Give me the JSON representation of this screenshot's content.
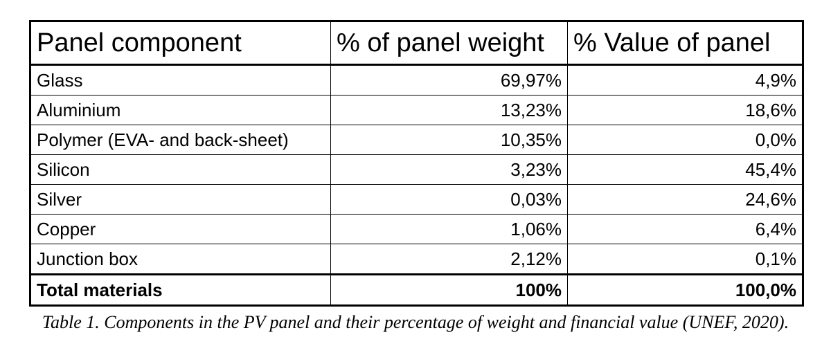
{
  "table": {
    "header": [
      "Panel component",
      "% of panel weight",
      "% Value of panel"
    ],
    "rows": [
      [
        "Glass",
        "69,97%",
        "4,9%"
      ],
      [
        "Aluminium",
        "13,23%",
        "18,6%"
      ],
      [
        "Polymer (EVA- and back-sheet)",
        "10,35%",
        "0,0%"
      ],
      [
        "Silicon",
        "3,23%",
        "45,4%"
      ],
      [
        "Silver",
        "0,03%",
        "24,6%"
      ],
      [
        "Copper",
        "1,06%",
        "6,4%"
      ],
      [
        "Junction box",
        "2,12%",
        "0,1%"
      ]
    ],
    "total": [
      "Total materials",
      "100%",
      "100,0%"
    ]
  },
  "caption": "Table 1. Components in the PV panel and their percentage of weight and financial value (UNEF, 2020)."
}
